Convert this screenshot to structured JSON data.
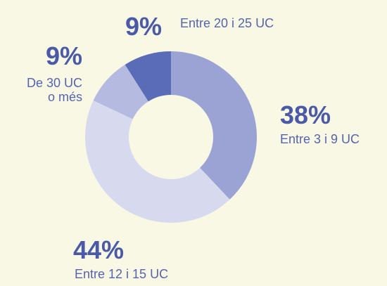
{
  "chart_data": {
    "type": "pie",
    "categories": [
      "Entre 3 i 9 UC",
      "Entre 12 i 15 UC",
      "De 30 UC o més",
      "Entre 20 i 25 UC"
    ],
    "values": [
      38,
      44,
      9,
      9
    ],
    "value_labels": [
      "38%",
      "44%",
      "9%",
      "9%"
    ],
    "colors": [
      "#9aa3d4",
      "#d7daef",
      "#b5bbe0",
      "#5a6bb8"
    ],
    "donut": true
  }
}
